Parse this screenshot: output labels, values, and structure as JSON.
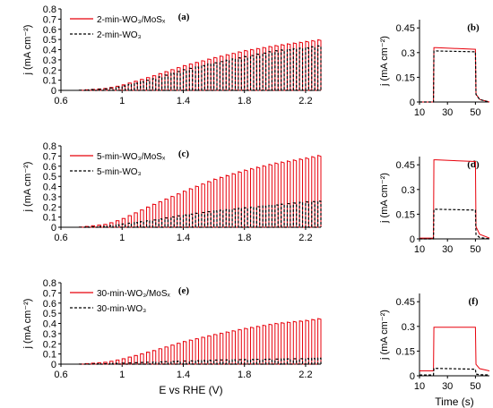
{
  "chart_data": [
    {
      "panel": "(a)",
      "type": "line",
      "xlabel": "",
      "ylabel": "j (mA cm⁻²)",
      "xlim": [
        0.6,
        2.3
      ],
      "ylim": [
        0,
        0.8
      ],
      "xticks": [
        "0.6",
        "1",
        "1.4",
        "1.8",
        "2.2"
      ],
      "yticks": [
        "0",
        "0.1",
        "0.2",
        "0.3",
        "0.4",
        "0.5",
        "0.6",
        "0.7",
        "0.8"
      ],
      "legend_position": "top-left",
      "series": [
        {
          "name": "2-min-WO₃/MoSₓ",
          "color": "#e8000b",
          "style": "solid",
          "mode": "chopped",
          "onset": 0.72,
          "x": [
            0.72,
            0.9,
            1.0,
            1.2,
            1.4,
            1.6,
            1.8,
            2.0,
            2.2,
            2.3
          ],
          "envelope": [
            0.0,
            0.02,
            0.05,
            0.14,
            0.24,
            0.32,
            0.39,
            0.44,
            0.48,
            0.5
          ]
        },
        {
          "name": "2-min-WO₃",
          "color": "#000000",
          "style": "dashed",
          "mode": "chopped",
          "onset": 0.72,
          "x": [
            0.72,
            0.9,
            1.0,
            1.2,
            1.4,
            1.6,
            1.8,
            2.0,
            2.2,
            2.3
          ],
          "envelope": [
            0.0,
            0.015,
            0.04,
            0.11,
            0.2,
            0.27,
            0.33,
            0.39,
            0.42,
            0.44
          ]
        }
      ]
    },
    {
      "panel": "(b)",
      "type": "line",
      "xlabel": "",
      "ylabel": "j (mA cm⁻²)",
      "xlim": [
        10,
        60
      ],
      "ylim": [
        0,
        0.5
      ],
      "xticks": [
        "10",
        "30",
        "50"
      ],
      "yticks": [
        "0",
        "0.15",
        "0.3",
        "0.45"
      ],
      "series": [
        {
          "name": "2-min-WO₃/MoSₓ",
          "color": "#e8000b",
          "style": "solid",
          "mode": "pulse",
          "on": 20,
          "off": 50,
          "base": 0.0,
          "peak": 0.33,
          "end": 0.32
        },
        {
          "name": "2-min-WO₃",
          "color": "#000000",
          "style": "dashed",
          "mode": "pulse",
          "on": 20,
          "off": 50,
          "base": 0.0,
          "peak": 0.31,
          "end": 0.305
        }
      ]
    },
    {
      "panel": "(c)",
      "type": "line",
      "xlabel": "",
      "ylabel": "j (mA cm⁻²)",
      "xlim": [
        0.6,
        2.3
      ],
      "ylim": [
        0,
        0.8
      ],
      "xticks": [
        "0.6",
        "1",
        "1.4",
        "1.8",
        "2.2"
      ],
      "yticks": [
        "0",
        "0.1",
        "0.2",
        "0.3",
        "0.4",
        "0.5",
        "0.6",
        "0.7",
        "0.8"
      ],
      "legend_position": "top-left",
      "series": [
        {
          "name": "5-min-WO₃/MoSₓ",
          "color": "#e8000b",
          "style": "solid",
          "mode": "chopped",
          "onset": 0.72,
          "x": [
            0.72,
            0.9,
            1.0,
            1.2,
            1.4,
            1.6,
            1.8,
            2.0,
            2.2,
            2.3
          ],
          "envelope": [
            0.0,
            0.03,
            0.08,
            0.22,
            0.35,
            0.47,
            0.56,
            0.63,
            0.68,
            0.71
          ]
        },
        {
          "name": "5-min-WO₃",
          "color": "#000000",
          "style": "dashed",
          "mode": "chopped",
          "onset": 0.72,
          "x": [
            0.72,
            0.9,
            1.0,
            1.2,
            1.4,
            1.6,
            1.8,
            2.0,
            2.2,
            2.3
          ],
          "envelope": [
            0.0,
            0.01,
            0.03,
            0.07,
            0.12,
            0.16,
            0.19,
            0.22,
            0.25,
            0.26
          ]
        }
      ]
    },
    {
      "panel": "(d)",
      "type": "line",
      "xlabel": "",
      "ylabel": "j (mA cm⁻²)",
      "xlim": [
        10,
        60
      ],
      "ylim": [
        0,
        0.5
      ],
      "xticks": [
        "10",
        "30",
        "50"
      ],
      "yticks": [
        "0",
        "0.15",
        "0.3",
        "0.45"
      ],
      "series": [
        {
          "name": "5-min-WO₃/MoSₓ",
          "color": "#e8000b",
          "style": "solid",
          "mode": "pulse",
          "on": 20,
          "off": 50,
          "base": 0.005,
          "peak": 0.48,
          "end": 0.47
        },
        {
          "name": "5-min-WO₃",
          "color": "#000000",
          "style": "dashed",
          "mode": "pulse",
          "on": 20,
          "off": 50,
          "base": 0.0,
          "peak": 0.18,
          "end": 0.175
        }
      ]
    },
    {
      "panel": "(e)",
      "type": "line",
      "xlabel": "E vs RHE (V)",
      "ylabel": "j (mA cm⁻²)",
      "xlim": [
        0.6,
        2.3
      ],
      "ylim": [
        0,
        0.8
      ],
      "xticks": [
        "0.6",
        "1",
        "1.4",
        "1.8",
        "2.2"
      ],
      "yticks": [
        "0",
        "0.1",
        "0.2",
        "0.3",
        "0.4",
        "0.5",
        "0.6",
        "0.7",
        "0.8"
      ],
      "legend_position": "top-left",
      "series": [
        {
          "name": "30-min-WO₃/MoSₓ",
          "color": "#e8000b",
          "style": "solid",
          "mode": "chopped",
          "onset": 0.72,
          "x": [
            0.72,
            0.9,
            1.0,
            1.2,
            1.4,
            1.6,
            1.8,
            2.0,
            2.2,
            2.3
          ],
          "envelope": [
            0.0,
            0.02,
            0.05,
            0.13,
            0.22,
            0.29,
            0.35,
            0.4,
            0.43,
            0.45
          ]
        },
        {
          "name": "30-min-WO₃",
          "color": "#000000",
          "style": "dashed",
          "mode": "chopped",
          "onset": 0.72,
          "x": [
            0.72,
            0.9,
            1.0,
            1.2,
            1.4,
            1.6,
            1.8,
            2.0,
            2.2,
            2.3
          ],
          "envelope": [
            0.0,
            0.005,
            0.01,
            0.02,
            0.03,
            0.04,
            0.045,
            0.05,
            0.055,
            0.06
          ]
        }
      ]
    },
    {
      "panel": "(f)",
      "type": "line",
      "xlabel": "Time (s)",
      "ylabel": "j (mA cm⁻²)",
      "xlim": [
        10,
        60
      ],
      "ylim": [
        0,
        0.5
      ],
      "xticks": [
        "10",
        "30",
        "50"
      ],
      "yticks": [
        "0",
        "0.15",
        "0.3",
        "0.45"
      ],
      "series": [
        {
          "name": "30-min-WO₃/MoSₓ",
          "color": "#e8000b",
          "style": "solid",
          "mode": "pulse",
          "on": 20,
          "off": 50,
          "base": 0.03,
          "peak": 0.295,
          "end": 0.295
        },
        {
          "name": "30-min-WO₃",
          "color": "#000000",
          "style": "dashed",
          "mode": "pulse",
          "on": 20,
          "off": 50,
          "base": 0.005,
          "peak": 0.045,
          "end": 0.04
        }
      ]
    }
  ]
}
